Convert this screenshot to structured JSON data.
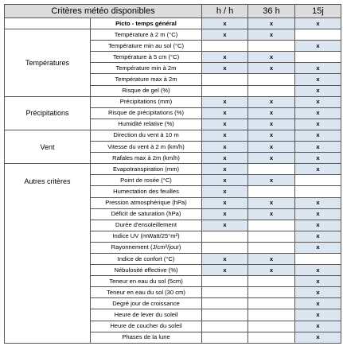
{
  "header": {
    "title": "Critères météo disponibles",
    "columns": [
      "h / h",
      "36 h",
      "15j"
    ]
  },
  "groups": [
    {
      "rows": [
        {
          "criterion": "Picto - temps général",
          "marks": [
            "x",
            "x",
            "x"
          ]
        }
      ]
    },
    {
      "label": "Températures",
      "rows": [
        {
          "criterion": "Température à 2 m (°C)",
          "marks": [
            "x",
            "x",
            null
          ]
        },
        {
          "criterion": "Température min au sol (°C)",
          "marks": [
            null,
            null,
            "x"
          ]
        },
        {
          "criterion": "Température à 5 cm (°C)",
          "marks": [
            "x",
            "x",
            null
          ]
        },
        {
          "criterion": "Température min à 2m",
          "marks": [
            "x",
            "x",
            "x"
          ]
        },
        {
          "criterion": "Température max à 2m",
          "marks": [
            null,
            null,
            "x"
          ]
        },
        {
          "criterion": "Risque de gel (%)",
          "marks": [
            null,
            null,
            "x"
          ]
        }
      ]
    },
    {
      "label": "Précipitations",
      "rows": [
        {
          "criterion": "Précipitations (mm)",
          "marks": [
            "x",
            "x",
            "x"
          ]
        },
        {
          "criterion": "Risque de précipitations (%)",
          "marks": [
            "x",
            "x",
            "x"
          ]
        },
        {
          "criterion": "Humidité relative (%)",
          "marks": [
            "x",
            "x",
            "x"
          ]
        }
      ]
    },
    {
      "label": "Vent",
      "rows": [
        {
          "criterion": "Direction du vent à 10 m",
          "marks": [
            "x",
            "x",
            "x"
          ]
        },
        {
          "criterion": "Vitesse du vent à 2 m (km/h)",
          "marks": [
            "x",
            "x",
            "x"
          ]
        },
        {
          "criterion": "Rafales max à 2m (km/h)",
          "marks": [
            "x",
            "x",
            "x"
          ]
        }
      ]
    },
    {
      "label": "Autres critères",
      "rows": [
        {
          "criterion": "Evapotranspiration (mm)",
          "marks": [
            "x",
            null,
            "x"
          ]
        },
        {
          "criterion": "Point de rosée (°C)",
          "marks": [
            "x",
            "x",
            null
          ]
        },
        {
          "criterion": "Humectation des feuilles",
          "marks": [
            "x",
            null,
            null
          ]
        },
        {
          "criterion": "Pression atmosphérique (hPa)",
          "marks": [
            "x",
            "x",
            "x"
          ]
        },
        {
          "criterion": "Déficit de saturation (hPa)",
          "marks": [
            "x",
            "x",
            "x"
          ]
        },
        {
          "criterion": "Durée d'ensoleillement",
          "marks": [
            "x",
            null,
            "x"
          ]
        },
        {
          "criterion": "Indice UV (mWatt/25°m²)",
          "marks": [
            null,
            null,
            "x"
          ]
        },
        {
          "criterion": "Rayonnement (J/cm²/jour)",
          "marks": [
            null,
            null,
            "x"
          ]
        },
        {
          "criterion": "Indice de confort (°C)",
          "marks": [
            "x",
            "x",
            null
          ]
        },
        {
          "criterion": "Nébulosité effective (%)",
          "marks": [
            "x",
            "x",
            "x"
          ]
        },
        {
          "criterion": "Teneur en eau du sol (5cm)",
          "marks": [
            null,
            null,
            "x"
          ]
        },
        {
          "criterion": "Teneur en eau du sol (30 cm)",
          "marks": [
            null,
            null,
            "x"
          ]
        },
        {
          "criterion": "Degré jour de croissance",
          "marks": [
            null,
            null,
            "x"
          ]
        },
        {
          "criterion": "Heure de lever du soleil",
          "marks": [
            null,
            null,
            "x"
          ]
        },
        {
          "criterion": "Heure de coucher du soleil",
          "marks": [
            null,
            null,
            "x"
          ]
        },
        {
          "criterion": "Phases de la lune",
          "marks": [
            null,
            null,
            "x"
          ]
        }
      ]
    }
  ]
}
